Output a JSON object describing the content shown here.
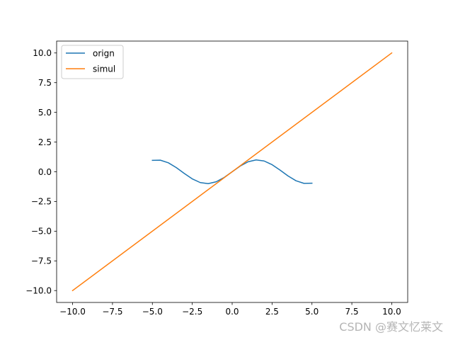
{
  "chart_data": {
    "type": "line",
    "title": "",
    "xlabel": "",
    "ylabel": "",
    "xlim": [
      -11.0,
      11.0
    ],
    "ylim": [
      -11.0,
      11.0
    ],
    "xticks": [
      -10.0,
      -7.5,
      -5.0,
      -2.5,
      0.0,
      2.5,
      5.0,
      7.5,
      10.0
    ],
    "xtick_labels": [
      "−10.0",
      "−7.5",
      "−5.0",
      "−2.5",
      "0.0",
      "2.5",
      "5.0",
      "7.5",
      "10.0"
    ],
    "yticks": [
      -10.0,
      -7.5,
      -5.0,
      -2.5,
      0.0,
      2.5,
      5.0,
      7.5,
      10.0
    ],
    "ytick_labels": [
      "−10.0",
      "−7.5",
      "−5.0",
      "−2.5",
      "0.0",
      "2.5",
      "5.0",
      "7.5",
      "10.0"
    ],
    "grid": false,
    "legend_position": "upper-left",
    "series": [
      {
        "name": "orign",
        "color": "#1f77b4",
        "x": [
          -5.0,
          -4.5,
          -4.0,
          -3.5,
          -3.0,
          -2.5,
          -2.0,
          -1.5,
          -1.0,
          -0.5,
          0.0,
          0.5,
          1.0,
          1.5,
          2.0,
          2.5,
          3.0,
          3.5,
          4.0,
          4.5,
          5.0
        ],
        "y": [
          0.959,
          0.978,
          0.757,
          0.351,
          -0.141,
          -0.598,
          -0.909,
          -0.997,
          -0.841,
          -0.479,
          0.0,
          0.479,
          0.841,
          0.997,
          0.909,
          0.598,
          0.141,
          -0.351,
          -0.757,
          -0.978,
          -0.959
        ]
      },
      {
        "name": "simul",
        "color": "#ff7f0e",
        "x": [
          -10.0,
          10.0
        ],
        "y": [
          -10.0,
          10.0
        ]
      }
    ]
  },
  "watermark": "CSDN @赛文忆莱文"
}
